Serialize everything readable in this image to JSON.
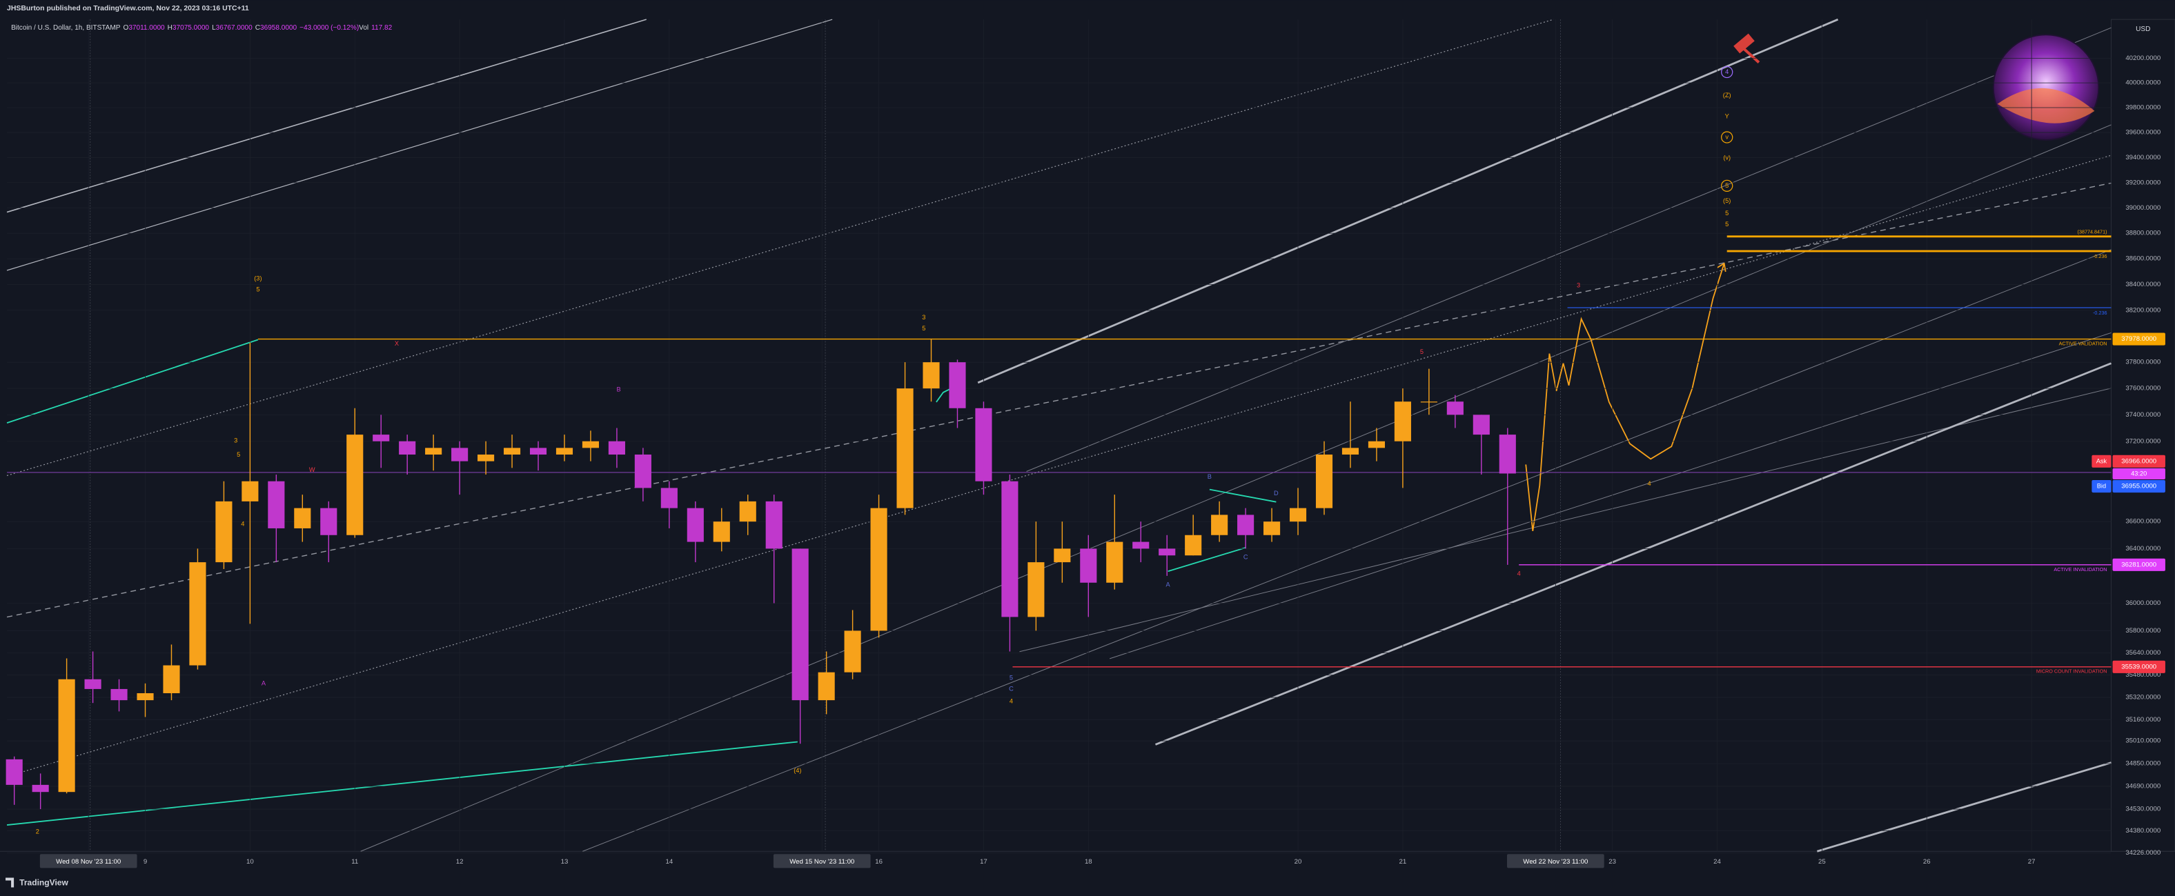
{
  "header": {
    "publisher": "JHSBurton published on TradingView.com, Nov 22, 2023 03:16 UTC+11",
    "footer": "TradingView"
  },
  "chart_data": {
    "type": "candlestick",
    "title": "Bitcoin / U.S. Dollar, 1h, BITSTAMP",
    "readout": [
      "O",
      "37011.0000",
      "H",
      "37075.0000",
      "L",
      "36767.0000",
      "C",
      "36958.0000",
      "−43.0000 (−0.12%)",
      "Vol",
      "117.82"
    ],
    "currency": "USD",
    "up_color": "#f7a21b",
    "down_color": "#c038cc",
    "log_scale": true,
    "grid": true,
    "x": [
      7.75,
      8,
      8.25,
      8.5,
      8.75,
      9,
      9.25,
      9.5,
      9.75,
      10,
      10.25,
      10.5,
      10.75,
      11,
      11.25,
      11.5,
      11.75,
      12,
      12.25,
      12.5,
      12.75,
      13,
      13.25,
      13.5,
      13.75,
      14,
      14.25,
      14.5,
      14.75,
      15,
      15.25,
      15.5,
      15.75,
      16,
      16.25,
      16.5,
      16.75,
      17,
      17.25,
      17.5,
      17.75,
      18,
      18.25,
      18.5,
      18.75,
      19,
      19.25,
      19.5,
      19.75,
      20,
      20.25,
      20.5,
      20.75,
      21,
      21.25,
      21.5,
      21.75,
      22
    ],
    "open": [
      34880,
      34700,
      34650,
      35450,
      35380,
      35300,
      35350,
      35550,
      36300,
      36750,
      36900,
      36550,
      36700,
      36500,
      37250,
      37200,
      37100,
      37150,
      37050,
      37100,
      37150,
      37100,
      37150,
      37200,
      37100,
      36850,
      36700,
      36450,
      36600,
      36750,
      36400,
      35300,
      35500,
      35800,
      36700,
      37600,
      37800,
      37450,
      36900,
      35900,
      36300,
      36400,
      36150,
      36450,
      36400,
      36350,
      36500,
      36650,
      36500,
      36600,
      36700,
      37100,
      37150,
      37200,
      37500,
      37500,
      37400,
      37250
    ],
    "high": [
      34900,
      34780,
      35600,
      35650,
      35450,
      35420,
      35700,
      36400,
      36900,
      37950,
      36950,
      36800,
      36750,
      37450,
      37400,
      37250,
      37250,
      37200,
      37200,
      37250,
      37200,
      37250,
      37280,
      37300,
      37150,
      36900,
      36750,
      36700,
      36800,
      36800,
      36400,
      35650,
      35950,
      36800,
      37800,
      37980,
      37820,
      37500,
      36950,
      36600,
      36600,
      36500,
      36800,
      36600,
      36500,
      36650,
      36750,
      36700,
      36700,
      36850,
      37200,
      37500,
      37300,
      37600,
      37750,
      37550,
      37400,
      37300
    ],
    "low": [
      34560,
      34530,
      34640,
      35280,
      35220,
      35180,
      35300,
      35520,
      36250,
      35850,
      36300,
      36450,
      36300,
      36480,
      37000,
      36950,
      36980,
      36800,
      36950,
      37000,
      36980,
      37050,
      37050,
      37000,
      36750,
      36550,
      36300,
      36380,
      36500,
      36000,
      34990,
      35200,
      35450,
      35750,
      36650,
      37500,
      37300,
      36800,
      35650,
      35800,
      36150,
      35900,
      36100,
      36300,
      36200,
      36350,
      36450,
      36400,
      36450,
      36500,
      36650,
      37000,
      37050,
      36850,
      37400,
      37300,
      36950,
      36281
    ],
    "close": [
      34700,
      34650,
      35450,
      35380,
      35300,
      35350,
      35550,
      36300,
      36750,
      36900,
      36550,
      36700,
      36500,
      37250,
      37200,
      37100,
      37150,
      37050,
      37100,
      37150,
      37100,
      37150,
      37200,
      37100,
      36850,
      36700,
      36450,
      36600,
      36750,
      36400,
      35300,
      35500,
      35800,
      36700,
      37600,
      37800,
      37450,
      36900,
      35900,
      36300,
      36400,
      36150,
      36450,
      36400,
      36350,
      36500,
      36650,
      36500,
      36600,
      36700,
      37100,
      37150,
      37200,
      37500,
      37500,
      37400,
      37250,
      36958
    ],
    "xlim": [
      7.68,
      27.76
    ],
    "xticks": [
      {
        "value": 8.458,
        "label": "Wed 08 Nov '23  11:00"
      },
      9,
      10,
      11,
      12,
      13,
      14,
      {
        "value": 15.458,
        "label": "Wed 15 Nov '23  11:00"
      },
      16,
      17,
      18,
      20,
      21,
      {
        "value": 22.458,
        "label": "Wed 22 Nov '23  11:00"
      },
      23,
      24,
      25,
      26,
      27
    ],
    "ylim": [
      34236,
      40517
    ],
    "yticks": [
      {
        "value": 40200,
        "label": "40200.0000"
      },
      {
        "value": 40000,
        "label": "40000.0000"
      },
      {
        "value": 39800,
        "label": "39800.0000"
      },
      {
        "value": 39600,
        "label": "39600.0000"
      },
      {
        "value": 39400,
        "label": "39400.0000"
      },
      {
        "value": 39200,
        "label": "39200.0000"
      },
      {
        "value": 39000,
        "label": "39000.0000"
      },
      {
        "value": 38800,
        "label": "38800.0000"
      },
      {
        "value": 38600,
        "label": "38600.0000"
      },
      {
        "value": 38400,
        "label": "38400.0000"
      },
      {
        "value": 38200,
        "label": "38200.0000"
      },
      {
        "value": 37800,
        "label": "37800.0000"
      },
      {
        "value": 37600,
        "label": "37600.0000"
      },
      {
        "value": 37400,
        "label": "37400.0000"
      },
      {
        "value": 37200,
        "label": "37200.0000"
      },
      {
        "value": 36600,
        "label": "36600.0000"
      },
      {
        "value": 36400,
        "label": "36400.0000"
      },
      {
        "value": 36000,
        "label": "36000.0000"
      },
      {
        "value": 35800,
        "label": "35800.0000"
      },
      {
        "value": 35640,
        "label": "35640.0000"
      },
      {
        "value": 35480,
        "label": "35480.0000"
      },
      {
        "value": 35320,
        "label": "35320.0000"
      },
      {
        "value": 35160,
        "label": "35160.0000"
      },
      {
        "value": 35010,
        "label": "35010.0000"
      },
      {
        "value": 34850,
        "label": "34850.0000"
      },
      {
        "value": 34690,
        "label": "34690.0000"
      },
      {
        "value": 34530,
        "label": "34530.0000"
      },
      {
        "value": 34380,
        "label": "34380.0000"
      },
      {
        "value": 34226,
        "label": "34226.0000"
      }
    ],
    "price_levels": [
      {
        "value": 37978,
        "label": "37978.0000",
        "note": "ACTIVE VALIDATION",
        "color": "#f7a600"
      },
      {
        "value": 36281,
        "label": "36281.0000",
        "note": "ACTIVE INVALIDATION",
        "color": "#e040fb"
      },
      {
        "value": 35539,
        "label": "35539.0000",
        "note": "MICRO COUNT INVALIDATION",
        "color": "#f23645"
      }
    ],
    "fib_levels": [
      {
        "value": 38774.8471,
        "label": "(38774.8471)",
        "color": "#f7a600"
      },
      {
        "value": 38660,
        "label": "-0.236",
        "color": "#f7a600"
      },
      {
        "value": 38220,
        "label": "-0.236",
        "color": "#2962ff"
      }
    ],
    "ask": {
      "name": "Ask",
      "value": 36966,
      "label": "36966.0000",
      "color": "#f23645"
    },
    "countdown": "43:20",
    "bid": {
      "name": "Bid",
      "value": 36955,
      "label": "36955.0000",
      "color": "#2962ff"
    },
    "annotations": [
      {
        "text": "(3)",
        "color": "#f7a600"
      },
      {
        "text": "5",
        "color": "#f7a600"
      },
      {
        "text": "3",
        "color": "#f7a600"
      },
      {
        "text": "5",
        "color": "#f7a600"
      },
      {
        "text": "4",
        "color": "#f7a600"
      },
      {
        "text": "W",
        "color": "#f23645"
      },
      {
        "text": "X",
        "color": "#f23645"
      },
      {
        "text": "B",
        "color": "#c038cc"
      },
      {
        "text": "A",
        "color": "#c038cc"
      },
      {
        "text": "(4)",
        "color": "#f7a600"
      },
      {
        "text": "3",
        "color": "#f7a600"
      },
      {
        "text": "5",
        "color": "#f7a600"
      },
      {
        "text": "5",
        "color": "#5b6bd6"
      },
      {
        "text": "C",
        "color": "#5b6bd6"
      },
      {
        "text": "4",
        "color": "#f7a600"
      },
      {
        "text": "3",
        "color": "#f23645"
      },
      {
        "text": "5",
        "color": "#f23645"
      },
      {
        "text": "4",
        "color": "#f7a600"
      },
      {
        "text": "(Z)",
        "color": "#f7a600"
      },
      {
        "text": "Y",
        "color": "#f7a600"
      },
      {
        "text": "(v)",
        "color": "#f7a600"
      },
      {
        "text": "(5)",
        "color": "#f7a600"
      },
      {
        "text": "5",
        "color": "#f7a600"
      },
      {
        "text": "5",
        "color": "#f7a600"
      },
      {
        "text": "B",
        "color": "#5b6bd6"
      },
      {
        "text": "D",
        "color": "#5b6bd6"
      },
      {
        "text": "A",
        "color": "#5b6bd6"
      },
      {
        "text": "C",
        "color": "#5b6bd6"
      },
      {
        "text": "2",
        "color": "#f7a600"
      },
      {
        "text": "4",
        "color": "#f23645"
      },
      {
        "text": "v",
        "color": "#f7a600",
        "circled": true
      },
      {
        "text": "4",
        "color": "#9c6bff",
        "circled": true
      },
      {
        "text": "5",
        "color": "#f7a600",
        "circled": true
      }
    ]
  }
}
